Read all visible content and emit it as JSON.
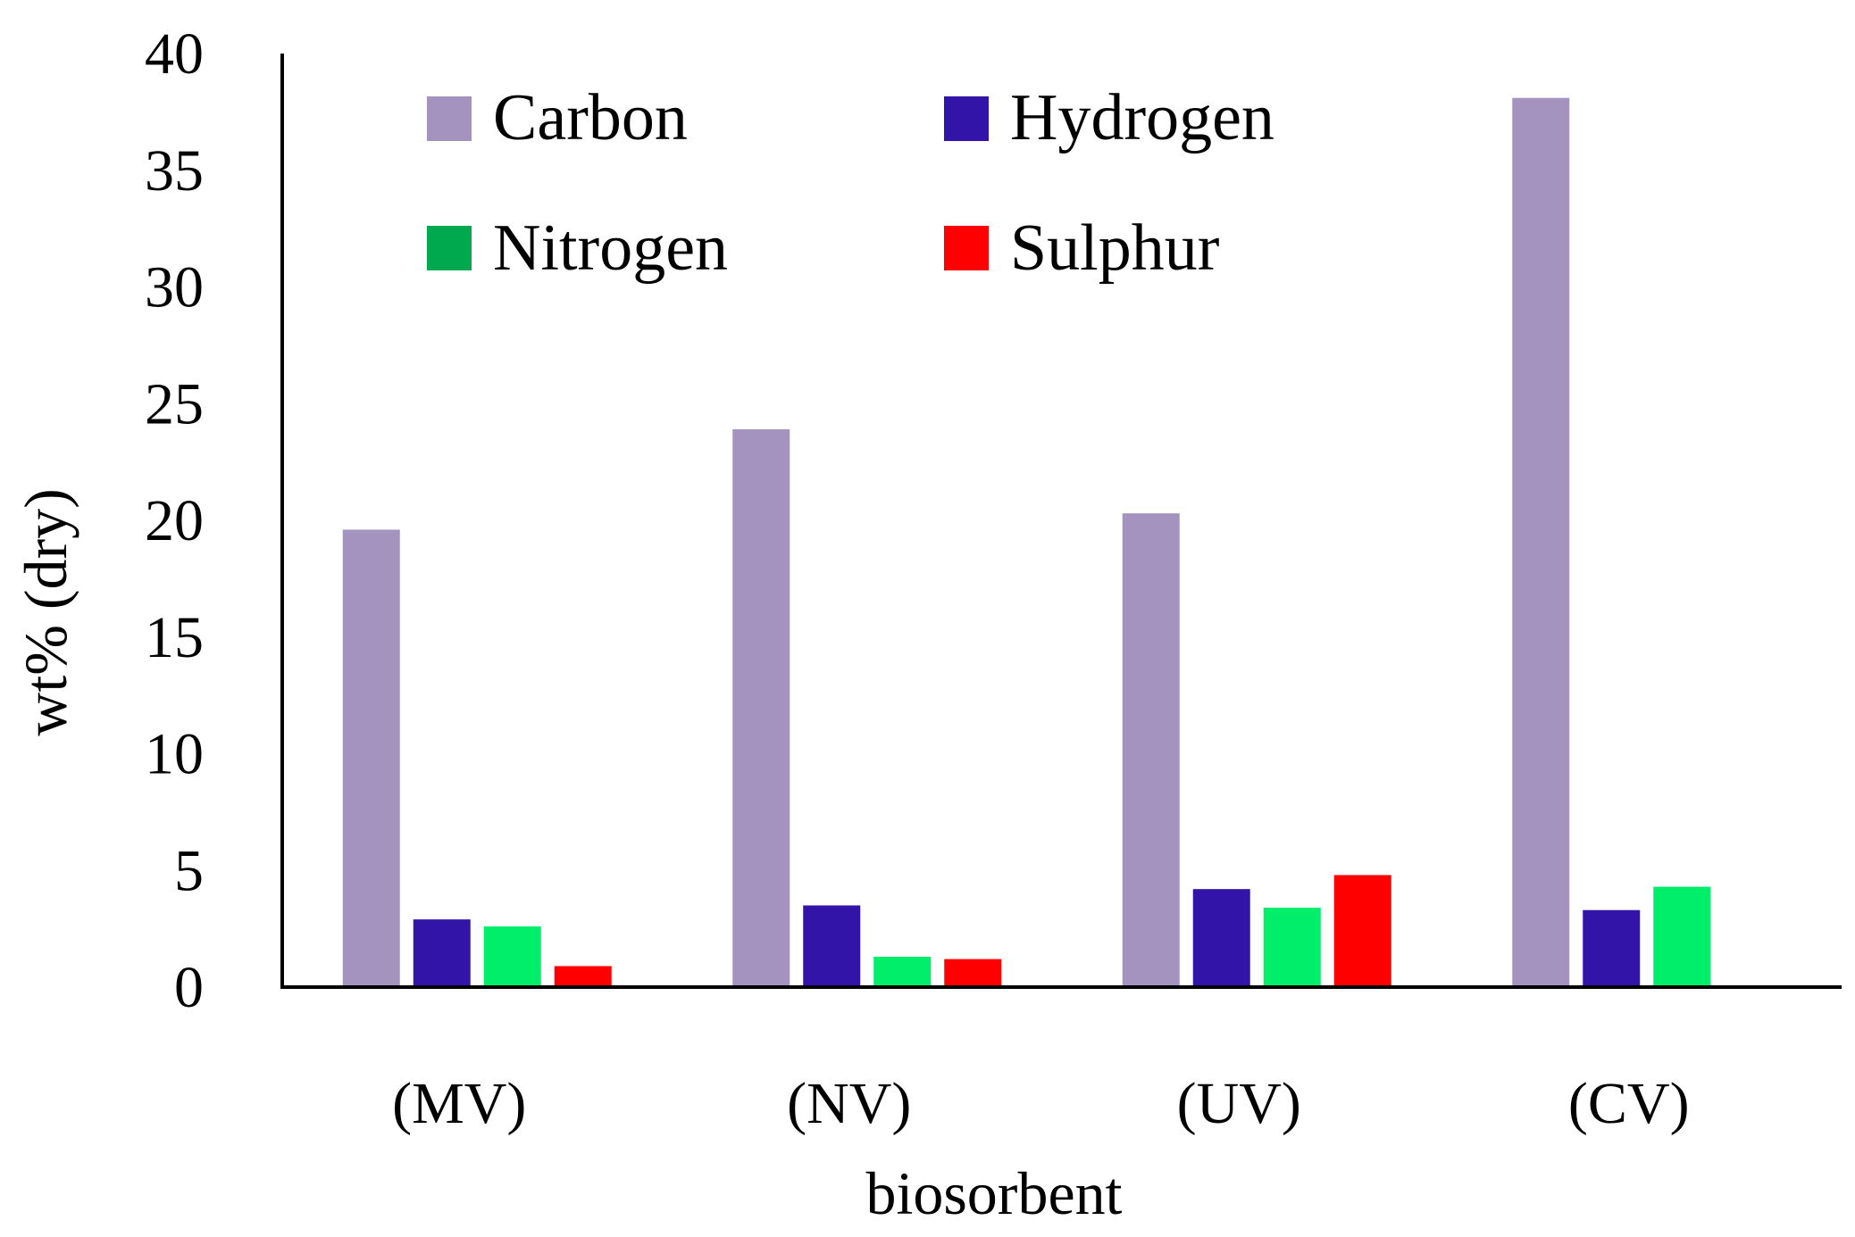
{
  "chart_data": {
    "type": "bar",
    "title": "",
    "xlabel": "biosorbent",
    "ylabel": "wt% (dry)",
    "ylim": [
      0,
      40
    ],
    "yticks": [
      0,
      5,
      10,
      15,
      20,
      25,
      30,
      35,
      40
    ],
    "grid": false,
    "legend_position": "top",
    "categories": [
      "(MV)",
      "(NV)",
      "(UV)",
      "(CV)"
    ],
    "series": [
      {
        "name": "Carbon",
        "color": "#a493bf",
        "values": [
          19.6,
          23.9,
          20.3,
          38.1
        ]
      },
      {
        "name": "Hydrogen",
        "color": "#3314a8",
        "values": [
          2.9,
          3.5,
          4.2,
          3.3
        ]
      },
      {
        "name": "Nitrogen",
        "color": "#00ee6a",
        "values": [
          2.6,
          1.3,
          3.4,
          4.3
        ]
      },
      {
        "name": "Sulphur",
        "color": "#ff0000",
        "values": [
          0.9,
          1.2,
          4.8,
          0
        ]
      }
    ],
    "legend_swatch_colors": [
      "#a493bf",
      "#3314a8",
      "#00a84e",
      "#ff0000"
    ]
  }
}
